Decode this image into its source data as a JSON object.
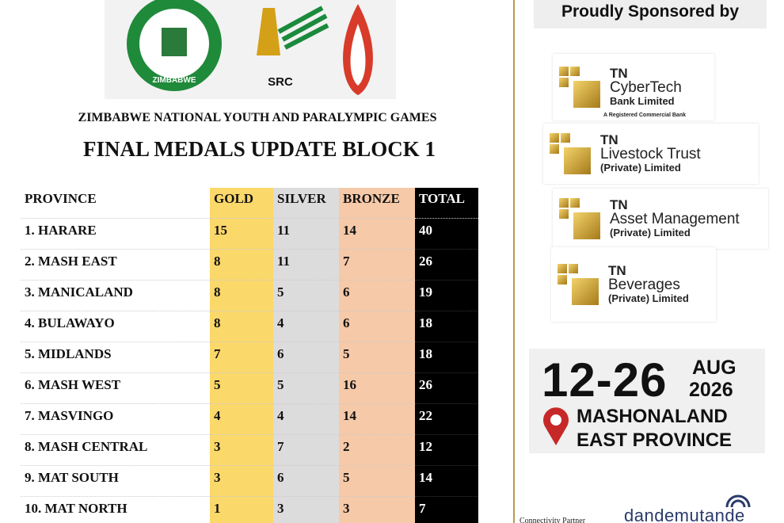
{
  "logos": {
    "ministry_ring": "ZIMBABWE",
    "src": "SRC"
  },
  "header": {
    "subtitle": "ZIMBABWE NATIONAL YOUTH AND PARALYMPIC GAMES",
    "title": "FINAL MEDALS UPDATE BLOCK 1"
  },
  "table": {
    "columns": [
      "PROVINCE",
      "GOLD",
      "SILVER",
      "BRONZE",
      "TOTAL"
    ],
    "rows": [
      [
        "1. HARARE",
        15,
        11,
        14,
        40
      ],
      [
        "2. MASH EAST",
        8,
        11,
        7,
        26
      ],
      [
        "3. MANICALAND",
        8,
        5,
        6,
        19
      ],
      [
        "4. BULAWAYO",
        8,
        4,
        6,
        18
      ],
      [
        "5. MIDLANDS",
        7,
        6,
        5,
        18
      ],
      [
        "6. MASH WEST",
        5,
        5,
        16,
        26
      ],
      [
        "7. MASVINGO",
        4,
        4,
        14,
        22
      ],
      [
        "8. MASH CENTRAL",
        3,
        7,
        2,
        12
      ],
      [
        "9. MAT SOUTH",
        3,
        6,
        5,
        14
      ],
      [
        "10. MAT NORTH",
        1,
        3,
        3,
        7
      ]
    ]
  },
  "sponsors": {
    "heading": "Proudly Sponsored by",
    "items": [
      {
        "brand": "TN",
        "name": "CyberTech",
        "suffix": "Bank Limited",
        "note": "A Registered Commercial Bank"
      },
      {
        "brand": "TN",
        "name": "Livestock Trust",
        "suffix": "(Private) Limited"
      },
      {
        "brand": "TN",
        "name": "Asset Management",
        "suffix": "(Private) Limited"
      },
      {
        "brand": "TN",
        "name": "Beverages",
        "suffix": "(Private) Limited"
      }
    ]
  },
  "event": {
    "dates": "12-26",
    "month": "AUG",
    "year": "2026",
    "place_line1": "MASHONALAND",
    "place_line2": "EAST PROVINCE"
  },
  "footer": {
    "partner_label": "Connectivity Partner",
    "partner": "dandemutande"
  }
}
